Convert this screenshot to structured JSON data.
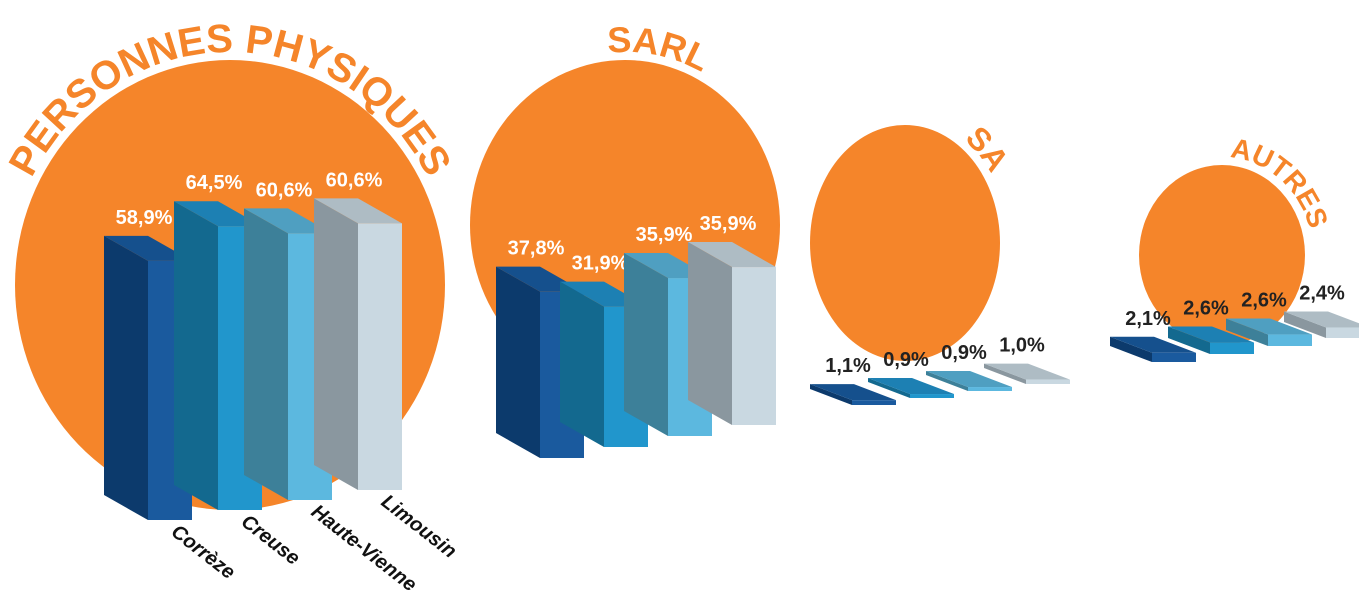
{
  "chart_data": {
    "type": "bar3d",
    "categories": [
      "PERSONNES PHYSIQUES",
      "SARL",
      "SA",
      "AUTRES"
    ],
    "circle_color": "#f5852a",
    "label_colors": [
      "#ffffff",
      "#ffffff",
      "#222222",
      "#222222"
    ],
    "series": [
      {
        "name": "Corrèze",
        "color": "#1a5a9e",
        "side_color": "#0c3a6c",
        "top_color": "#15508d",
        "values": [
          58.9,
          37.8,
          1.1,
          2.1
        ],
        "value_labels": [
          "58,9%",
          "37,8%",
          "1,1%",
          "2,1%"
        ]
      },
      {
        "name": "Creuse",
        "color": "#2196cc",
        "side_color": "#13698f",
        "top_color": "#1d80b3",
        "values": [
          64.5,
          31.9,
          0.9,
          2.6
        ],
        "value_labels": [
          "64,5%",
          "31,9%",
          "0,9%",
          "2,6%"
        ]
      },
      {
        "name": "Haute-Vienne",
        "color": "#5cb8df",
        "side_color": "#3d8099",
        "top_color": "#4f9fc1",
        "values": [
          60.6,
          35.9,
          0.9,
          2.6
        ],
        "value_labels": [
          "60,6%",
          "35,9%",
          "0,9%",
          "2,6%"
        ]
      },
      {
        "name": "Limousin",
        "color": "#c9d8e1",
        "side_color": "#8a979f",
        "top_color": "#aebcc4",
        "values": [
          60.6,
          35.9,
          1.0,
          2.4
        ],
        "value_labels": [
          "60,6%",
          "35,9%",
          "1,0%",
          "2,4%"
        ]
      }
    ]
  }
}
